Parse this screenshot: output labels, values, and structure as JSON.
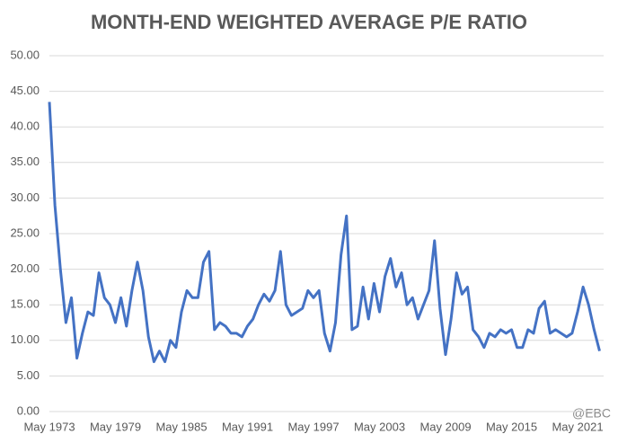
{
  "chart_data": {
    "type": "line",
    "title": "MONTH-END WEIGHTED AVERAGE P/E RATIO",
    "categories": [
      "May 1973",
      null,
      null,
      null,
      null,
      null,
      null,
      null,
      null,
      null,
      null,
      null,
      "May 1979",
      null,
      null,
      null,
      null,
      null,
      null,
      null,
      null,
      null,
      null,
      null,
      "May 1985",
      null,
      null,
      null,
      null,
      null,
      null,
      null,
      null,
      null,
      null,
      null,
      "May 1991",
      null,
      null,
      null,
      null,
      null,
      null,
      null,
      null,
      null,
      null,
      null,
      "May 1997",
      null,
      null,
      null,
      null,
      null,
      null,
      null,
      null,
      null,
      null,
      null,
      "May 2003",
      null,
      null,
      null,
      null,
      null,
      null,
      null,
      null,
      null,
      null,
      null,
      "May 2009",
      null,
      null,
      null,
      null,
      null,
      null,
      null,
      null,
      null,
      null,
      null,
      "May 2015",
      null,
      null,
      null,
      null,
      null,
      null,
      null,
      null,
      null,
      null,
      null,
      "May 2021",
      null,
      null,
      null,
      null
    ],
    "series": [
      {
        "name": "P/E",
        "color": "#4472c4",
        "values": [
          43.5,
          29,
          20,
          12.5,
          16,
          7.5,
          11,
          14,
          13.5,
          19.5,
          16,
          15,
          12.5,
          16,
          12,
          17,
          21,
          17,
          10.5,
          7,
          8.5,
          7,
          10,
          9,
          14,
          17,
          16,
          16,
          21,
          22.5,
          11.5,
          12.5,
          12,
          11,
          11,
          10.5,
          12,
          13,
          15,
          16.5,
          15.5,
          17,
          22.5,
          15,
          13.5,
          14,
          14.5,
          17,
          16,
          17,
          11,
          8.5,
          12.5,
          22,
          27.5,
          11.5,
          12,
          17.5,
          13,
          18,
          14,
          19,
          21.5,
          17.5,
          19.5,
          15,
          16,
          13,
          15,
          17,
          24,
          14.5,
          8,
          13,
          19.5,
          16.5,
          17.5,
          11.5,
          10.5,
          9,
          11,
          10.5,
          11.5,
          11,
          11.5,
          9,
          9,
          11.5,
          11,
          14.5,
          15.5,
          11,
          11.5,
          11,
          10.5,
          11,
          14,
          17.5,
          15,
          11.5,
          8.5
        ]
      }
    ],
    "ylim": [
      0,
      50
    ],
    "yticks": [
      {
        "value": 0,
        "label": "0.00"
      },
      {
        "value": 5,
        "label": "5.00"
      },
      {
        "value": 10,
        "label": "10.00"
      },
      {
        "value": 15,
        "label": "15.00"
      },
      {
        "value": 20,
        "label": "20.00"
      },
      {
        "value": 25,
        "label": "25.00"
      },
      {
        "value": 30,
        "label": "30.00"
      },
      {
        "value": 35,
        "label": "35.00"
      },
      {
        "value": 40,
        "label": "40.00"
      },
      {
        "value": 45,
        "label": "45.00"
      },
      {
        "value": 50,
        "label": "50.00"
      }
    ],
    "grid": true,
    "watermark": "@EBC"
  }
}
